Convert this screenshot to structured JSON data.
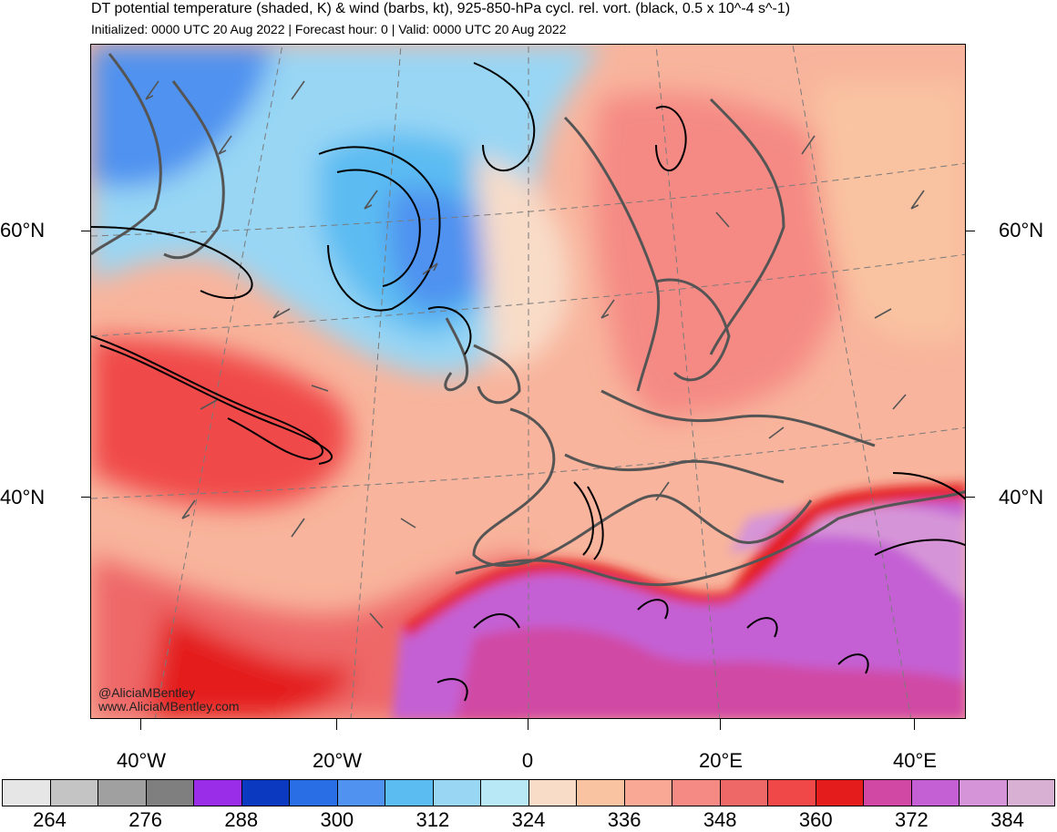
{
  "header": {
    "title": "DT potential temperature (shaded, K) & wind (barbs, kt), 925-850-hPa cycl. rel. vort. (black, 0.5 x 10^-4 s^-1)",
    "subtitle": "Initialized: 0000 UTC 20 Aug 2022 | Forecast hour: 0 | Valid: 0000 UTC 20 Aug 2022"
  },
  "map": {
    "region": "North Atlantic and Europe",
    "lat_labels": [
      "60°N",
      "40°N"
    ],
    "lon_labels": [
      "40°W",
      "20°W",
      "0",
      "20°E",
      "40°E"
    ],
    "credit_line1": "@AliciaMBentley",
    "credit_line2": "www.AliciaMBentley.com"
  },
  "colorbar": {
    "labels": [
      "264",
      "276",
      "288",
      "300",
      "312",
      "324",
      "336",
      "348",
      "360",
      "372",
      "384"
    ],
    "colors": [
      "#e6e6e6",
      "#c4c4c4",
      "#a0a0a0",
      "#7f7f7f",
      "#9a2ee8",
      "#0b3ac0",
      "#2a6ee6",
      "#4f92f0",
      "#5bbcf2",
      "#98d6f4",
      "#b8e8f6",
      "#f8dcc8",
      "#f9c2a0",
      "#f8a894",
      "#f58a84",
      "#ee6868",
      "#f04848",
      "#e41c1c",
      "#d048a4",
      "#c460d4",
      "#d694d8",
      "#d8b0d4"
    ]
  }
}
